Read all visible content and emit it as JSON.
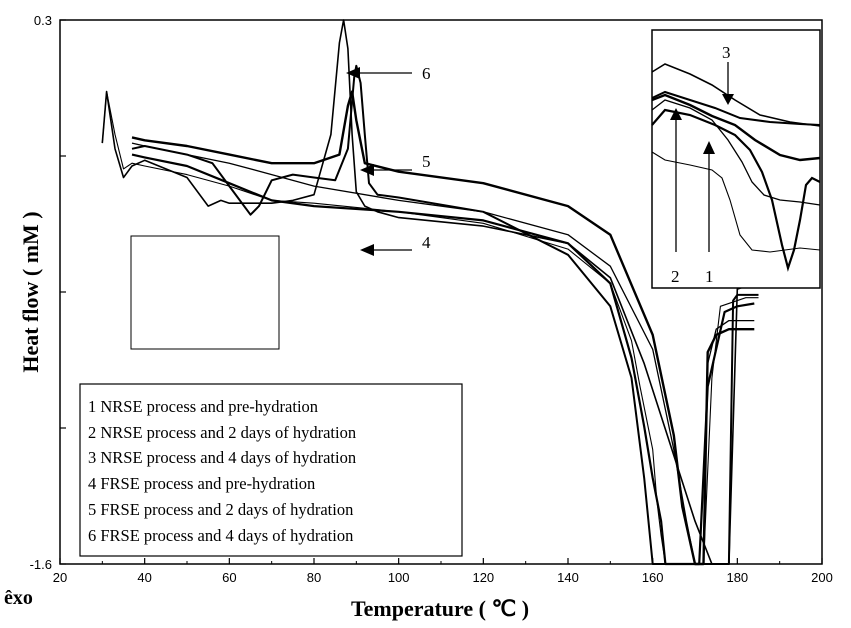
{
  "chart_data": {
    "type": "line",
    "xlabel": "Temperature ( ℃ )",
    "ylabel": "Heat flow ( mM )",
    "exo_label": "êxo",
    "xlim": [
      20,
      200
    ],
    "ylim": [
      -1.6,
      0.3
    ],
    "x_ticks": [
      "20",
      "40",
      "60",
      "80",
      "100",
      "120",
      "140",
      "160",
      "180",
      "200"
    ],
    "y_ticks": [
      "-1.6",
      "0.3"
    ],
    "legend": [
      "1 NRSE process and pre-hydration",
      "2 NRSE process and 2 days of hydration",
      "3 NRSE process and 4 days of hydration",
      "4 FRSE process and pre-hydration",
      "5 FRSE process and 2 days of hydration",
      "6 FRSE process and 4 days of hydration"
    ],
    "peak_labels": [
      "6",
      "5",
      "4"
    ],
    "inset_labels": [
      "3",
      "2",
      "1"
    ],
    "series": [
      {
        "x": [
          30,
          31,
          33,
          35,
          37,
          40,
          50,
          60,
          70,
          80,
          100,
          120,
          140,
          150,
          155,
          157,
          160,
          161,
          162,
          163,
          163.5,
          172,
          174,
          176,
          182,
          185
        ],
        "y": [
          -0.13,
          0.05,
          -0.1,
          -0.22,
          -0.2,
          -0.21,
          -0.24,
          -0.28,
          -0.33,
          -0.34,
          -0.37,
          -0.41,
          -0.5,
          -0.62,
          -0.82,
          -0.98,
          -1.2,
          -1.38,
          -1.5,
          -1.6,
          -1.6,
          -1.6,
          -0.95,
          -0.7,
          -0.67,
          -0.67
        ]
      },
      {
        "x": [
          37,
          40,
          50,
          60,
          70,
          80,
          100,
          120,
          140,
          150,
          155,
          158,
          160,
          162,
          163,
          164,
          171,
          173,
          177,
          180,
          184
        ],
        "y": [
          -0.17,
          -0.18,
          -0.21,
          -0.27,
          -0.33,
          -0.35,
          -0.37,
          -0.4,
          -0.48,
          -0.62,
          -0.88,
          -1.12,
          -1.3,
          -1.45,
          -1.6,
          -1.6,
          -1.6,
          -0.98,
          -0.72,
          -0.7,
          -0.69
        ]
      },
      {
        "x": [
          37,
          40,
          50,
          60,
          70,
          80,
          100,
          120,
          140,
          150,
          160,
          165,
          168,
          170,
          172,
          173,
          175,
          178,
          181,
          184
        ],
        "y": [
          -0.13,
          -0.14,
          -0.17,
          -0.2,
          -0.24,
          -0.28,
          -0.33,
          -0.37,
          -0.45,
          -0.56,
          -0.85,
          -1.2,
          -1.45,
          -1.6,
          -1.6,
          -0.9,
          -0.78,
          -0.75,
          -0.75,
          -0.75
        ]
      },
      {
        "x": [
          37,
          40,
          50,
          60,
          70,
          80,
          86,
          88,
          89,
          90,
          92,
          100,
          120,
          140,
          150,
          160,
          165,
          167,
          170,
          172,
          173,
          175,
          178,
          180,
          184
        ],
        "y": [
          -0.11,
          -0.12,
          -0.14,
          -0.17,
          -0.2,
          -0.2,
          -0.17,
          -0.0,
          0.05,
          -0.05,
          -0.2,
          -0.23,
          -0.27,
          -0.35,
          -0.45,
          -0.8,
          -1.15,
          -1.4,
          -1.6,
          -1.6,
          -0.86,
          -0.8,
          -0.78,
          -0.78,
          -0.78
        ]
      },
      {
        "x": [
          37,
          40,
          50,
          56,
          60,
          65,
          67,
          70,
          75,
          80,
          85,
          88,
          89.5,
          90,
          91,
          92,
          93,
          95,
          100,
          120,
          140,
          150,
          155,
          158,
          160,
          170,
          174,
          178,
          179,
          180,
          183,
          185
        ],
        "y": [
          -0.15,
          -0.14,
          -0.17,
          -0.2,
          -0.28,
          -0.38,
          -0.35,
          -0.26,
          -0.24,
          -0.25,
          -0.26,
          -0.15,
          0.1,
          0.14,
          0.08,
          -0.1,
          -0.27,
          -0.31,
          -0.32,
          -0.37,
          -0.52,
          -0.7,
          -0.95,
          -1.3,
          -1.6,
          -1.6,
          -1.6,
          -1.6,
          -0.68,
          -0.66,
          -0.66,
          -0.66
        ]
      },
      {
        "x": [
          30,
          31,
          33,
          35,
          37,
          40,
          50,
          55,
          58,
          60,
          65,
          70,
          75,
          80,
          84,
          86,
          87,
          88,
          89,
          90,
          92,
          95,
          100,
          120,
          140,
          150,
          158,
          170,
          174,
          176,
          178,
          180,
          182
        ],
        "y": [
          -0.13,
          0.05,
          -0.15,
          -0.25,
          -0.21,
          -0.19,
          -0.25,
          -0.35,
          -0.33,
          -0.34,
          -0.34,
          -0.34,
          -0.33,
          -0.31,
          -0.1,
          0.22,
          0.3,
          0.2,
          -0.1,
          -0.3,
          -0.35,
          -0.37,
          -0.39,
          -0.42,
          -0.48,
          -0.6,
          -0.9,
          -1.45,
          -1.6,
          -1.6,
          -1.6,
          -0.64,
          -0.63
        ]
      }
    ]
  }
}
